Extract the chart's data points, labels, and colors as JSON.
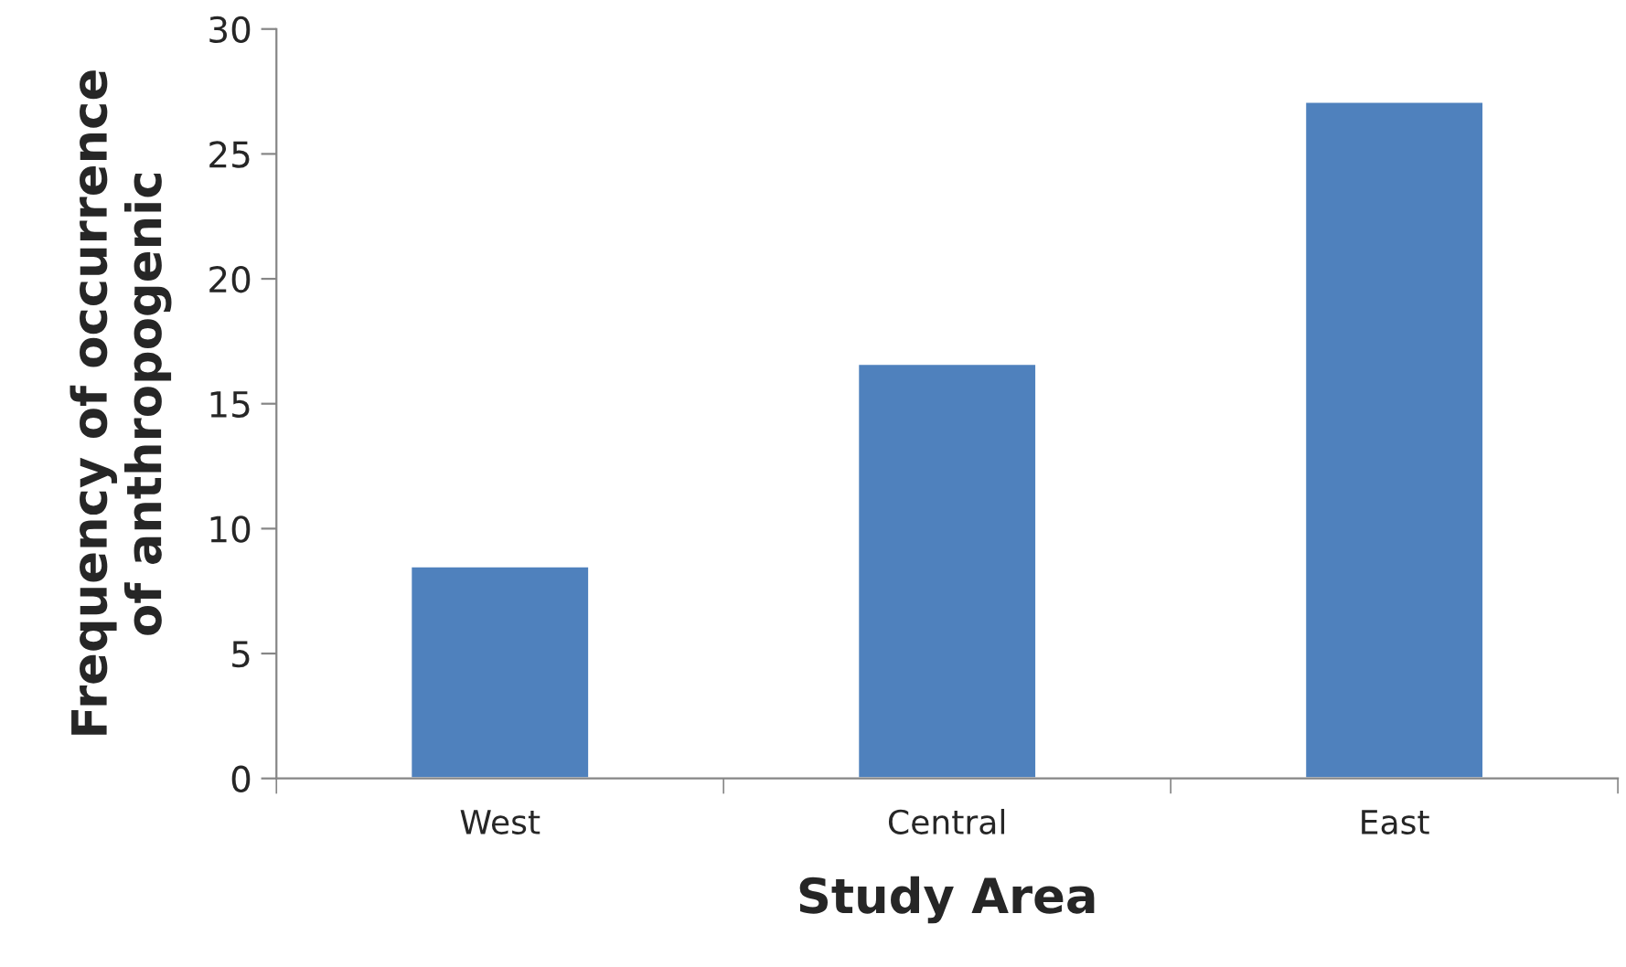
{
  "chart_data": {
    "type": "bar",
    "xlabel": "Study Area",
    "ylabel": "Frequency of occurrence\nof anthropogenic",
    "categories": [
      "West",
      "Central",
      "East"
    ],
    "values": [
      8.5,
      16.6,
      27.1
    ],
    "color": "#4f81bd",
    "ylim": [
      0,
      30
    ],
    "yticks": [
      0,
      5,
      10,
      15,
      20,
      25,
      30
    ],
    "grid": false,
    "legend": false
  }
}
